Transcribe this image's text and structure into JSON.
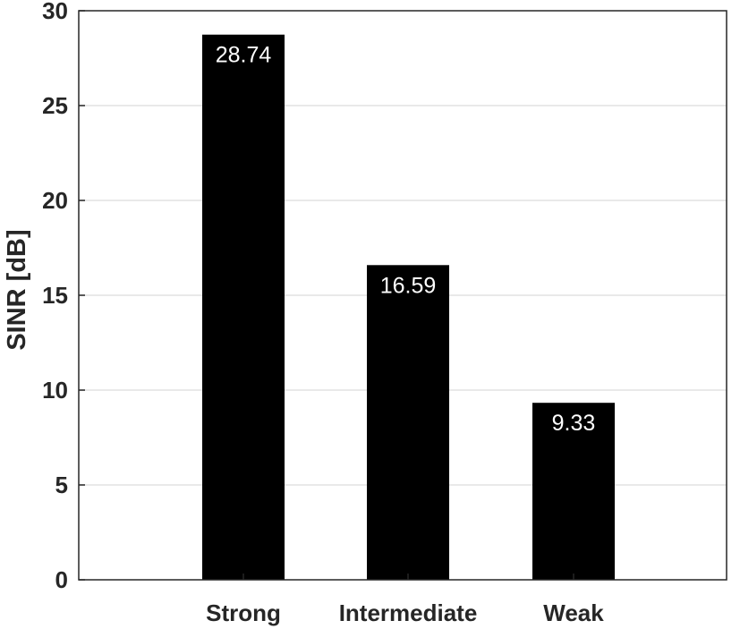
{
  "chart_data": {
    "type": "bar",
    "title": "",
    "xlabel": "",
    "ylabel": "SINR [dB]",
    "categories": [
      "Strong",
      "Intermediate",
      "Weak"
    ],
    "values": [
      28.74,
      16.59,
      9.33
    ],
    "data_labels": [
      "28.74",
      "16.59",
      "9.33"
    ],
    "ylim": [
      0,
      30
    ],
    "yticks": [
      0,
      5,
      10,
      15,
      20,
      25,
      30
    ],
    "ytick_labels": [
      "0",
      "5",
      "10",
      "15",
      "20",
      "25",
      "30"
    ],
    "grid": true,
    "bar_color": "#000000",
    "label_color": "#ffffff"
  }
}
